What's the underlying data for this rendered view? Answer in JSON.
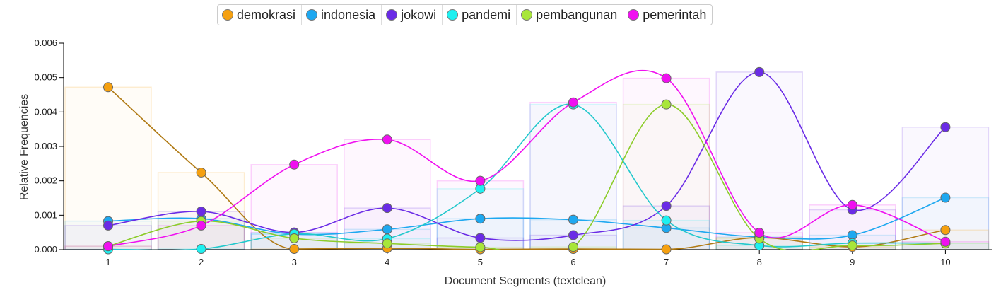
{
  "chart_data": {
    "type": "line",
    "title": "",
    "xlabel": "Document Segments (textclean)",
    "ylabel": "Relative Frequencies",
    "categories": [
      "1",
      "2",
      "3",
      "4",
      "5",
      "6",
      "7",
      "8",
      "9",
      "10"
    ],
    "x": [
      1,
      2,
      3,
      4,
      5,
      6,
      7,
      8,
      9,
      10
    ],
    "ylim": [
      0,
      0.006
    ],
    "yticks": [
      "0.000",
      "0.001",
      "0.002",
      "0.003",
      "0.004",
      "0.005",
      "0.006"
    ],
    "legend_position": "top",
    "series": [
      {
        "name": "demokrasi",
        "color": "#f5a010",
        "values": [
          0.00472,
          0.00224,
          2e-05,
          4e-05,
          1e-05,
          2e-05,
          1e-05,
          0.00035,
          8e-05,
          0.00057
        ]
      },
      {
        "name": "indonesia",
        "color": "#1ea8f0",
        "values": [
          0.00083,
          0.0009,
          0.00045,
          0.00059,
          0.0009,
          0.00087,
          0.00063,
          0.00037,
          0.00042,
          0.00151
        ]
      },
      {
        "name": "jokowi",
        "color": "#6a2be6",
        "values": [
          0.0007,
          0.00111,
          0.0005,
          0.00121,
          0.00034,
          0.00042,
          0.00127,
          0.00516,
          0.00116,
          0.00356
        ]
      },
      {
        "name": "pandemi",
        "color": "#1ef0f0",
        "values": [
          1e-05,
          2e-05,
          0.00046,
          0.00032,
          0.00177,
          0.00422,
          0.00085,
          0.00012,
          0.00019,
          0.00019
        ]
      },
      {
        "name": "pembangunan",
        "color": "#a8e63a",
        "values": [
          0.0001,
          0.00083,
          0.00033,
          0.00018,
          7e-05,
          8e-05,
          0.00422,
          0.00032,
          0.00012,
          0.00018
        ]
      },
      {
        "name": "pemerintah",
        "color": "#f010f0",
        "values": [
          0.0001,
          0.0007,
          0.00247,
          0.0032,
          0.002,
          0.00428,
          0.00498,
          0.00049,
          0.0013,
          0.00023
        ]
      }
    ]
  }
}
